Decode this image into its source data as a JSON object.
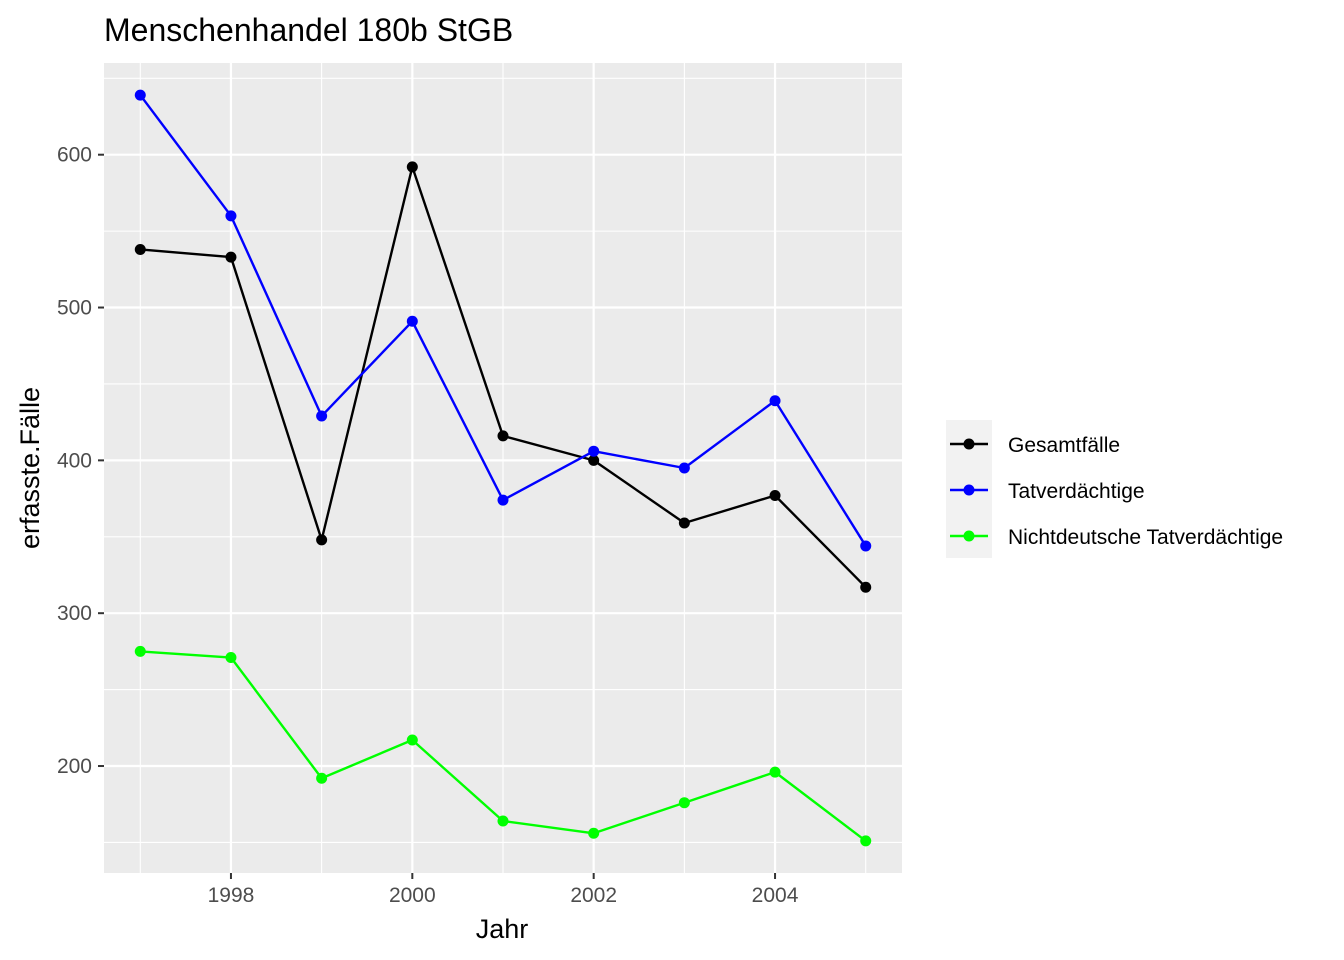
{
  "chart_data": {
    "type": "line",
    "title": "Menschenhandel 180b StGB",
    "xlabel": "Jahr",
    "ylabel": "erfasste.Fälle",
    "x": [
      1997,
      1998,
      1999,
      2000,
      2001,
      2002,
      2003,
      2004,
      2005
    ],
    "xlim": [
      1996.6,
      2005.4
    ],
    "ylim": [
      130,
      660
    ],
    "x_ticks": [
      1998,
      2000,
      2002,
      2004
    ],
    "x_tick_labels": [
      "1998",
      "2000",
      "2002",
      "2004"
    ],
    "y_ticks": [
      200,
      300,
      400,
      500,
      600
    ],
    "y_tick_labels": [
      "200",
      "300",
      "400",
      "500",
      "600"
    ],
    "grid": true,
    "legend_position": "right",
    "series": [
      {
        "name": "Gesamtfälle",
        "color": "#000000",
        "values": [
          538,
          533,
          348,
          592,
          416,
          400,
          359,
          377,
          317
        ]
      },
      {
        "name": "Tatverdächtige",
        "color": "#0000ff",
        "values": [
          639,
          560,
          429,
          491,
          374,
          406,
          395,
          439,
          344
        ]
      },
      {
        "name": "Nichtdeutsche Tatverdächtige",
        "color": "#00ff00",
        "values": [
          275,
          271,
          192,
          217,
          164,
          156,
          176,
          196,
          151
        ]
      }
    ]
  }
}
